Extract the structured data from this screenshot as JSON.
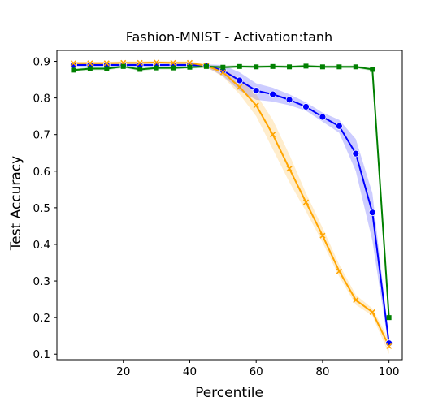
{
  "chart_data": {
    "type": "line",
    "title": "Fashion-MNIST - Activation:tanh",
    "xlabel": "Percentile",
    "ylabel": "Test Accuracy",
    "xlim": [
      0,
      104
    ],
    "ylim": [
      0.085,
      0.93
    ],
    "xticks": [
      20,
      40,
      60,
      80,
      100
    ],
    "yticks": [
      0.1,
      0.2,
      0.3,
      0.4,
      0.5,
      0.6,
      0.7,
      0.8,
      0.9
    ],
    "grid": false,
    "legend": "none",
    "x": [
      5,
      10,
      15,
      20,
      25,
      30,
      35,
      40,
      45,
      50,
      55,
      60,
      65,
      70,
      75,
      80,
      85,
      90,
      95,
      100
    ],
    "series": [
      {
        "color": "#0000ff",
        "fill": "#0000ff",
        "marker": "circle",
        "values": [
          0.89,
          0.89,
          0.89,
          0.89,
          0.89,
          0.89,
          0.89,
          0.89,
          0.888,
          0.875,
          0.848,
          0.82,
          0.81,
          0.795,
          0.776,
          0.748,
          0.723,
          0.648,
          0.487,
          0.13
        ],
        "lower": [
          0.886,
          0.886,
          0.886,
          0.886,
          0.886,
          0.886,
          0.886,
          0.886,
          0.884,
          0.86,
          0.82,
          0.795,
          0.79,
          0.78,
          0.765,
          0.735,
          0.705,
          0.6,
          0.41,
          0.115
        ],
        "upper": [
          0.894,
          0.894,
          0.894,
          0.894,
          0.894,
          0.894,
          0.894,
          0.894,
          0.892,
          0.89,
          0.87,
          0.84,
          0.828,
          0.81,
          0.788,
          0.76,
          0.74,
          0.688,
          0.54,
          0.145
        ]
      },
      {
        "color": "#ffa500",
        "fill": "#ffa500",
        "marker": "x",
        "values": [
          0.895,
          0.895,
          0.895,
          0.896,
          0.896,
          0.897,
          0.896,
          0.896,
          0.888,
          0.87,
          0.83,
          0.78,
          0.7,
          0.607,
          0.515,
          0.424,
          0.327,
          0.248,
          0.215,
          0.122
        ],
        "lower": [
          0.891,
          0.891,
          0.891,
          0.892,
          0.892,
          0.893,
          0.892,
          0.892,
          0.884,
          0.858,
          0.81,
          0.75,
          0.66,
          0.57,
          0.49,
          0.405,
          0.312,
          0.235,
          0.205,
          0.1
        ],
        "upper": [
          0.899,
          0.899,
          0.899,
          0.9,
          0.9,
          0.901,
          0.9,
          0.9,
          0.892,
          0.882,
          0.85,
          0.81,
          0.74,
          0.645,
          0.54,
          0.445,
          0.345,
          0.262,
          0.225,
          0.14
        ]
      },
      {
        "color": "#008000",
        "fill": "#008000",
        "marker": "square",
        "values": [
          0.876,
          0.88,
          0.88,
          0.886,
          0.878,
          0.882,
          0.882,
          0.884,
          0.886,
          0.884,
          0.886,
          0.885,
          0.886,
          0.885,
          0.887,
          0.885,
          0.885,
          0.885,
          0.878,
          0.2
        ],
        "lower": [
          0.872,
          0.876,
          0.876,
          0.882,
          0.874,
          0.878,
          0.878,
          0.88,
          0.882,
          0.88,
          0.882,
          0.881,
          0.882,
          0.881,
          0.883,
          0.881,
          0.881,
          0.881,
          0.874,
          0.196
        ],
        "upper": [
          0.88,
          0.884,
          0.884,
          0.89,
          0.882,
          0.886,
          0.886,
          0.888,
          0.89,
          0.888,
          0.89,
          0.889,
          0.89,
          0.889,
          0.891,
          0.889,
          0.889,
          0.889,
          0.882,
          0.204
        ]
      }
    ]
  }
}
